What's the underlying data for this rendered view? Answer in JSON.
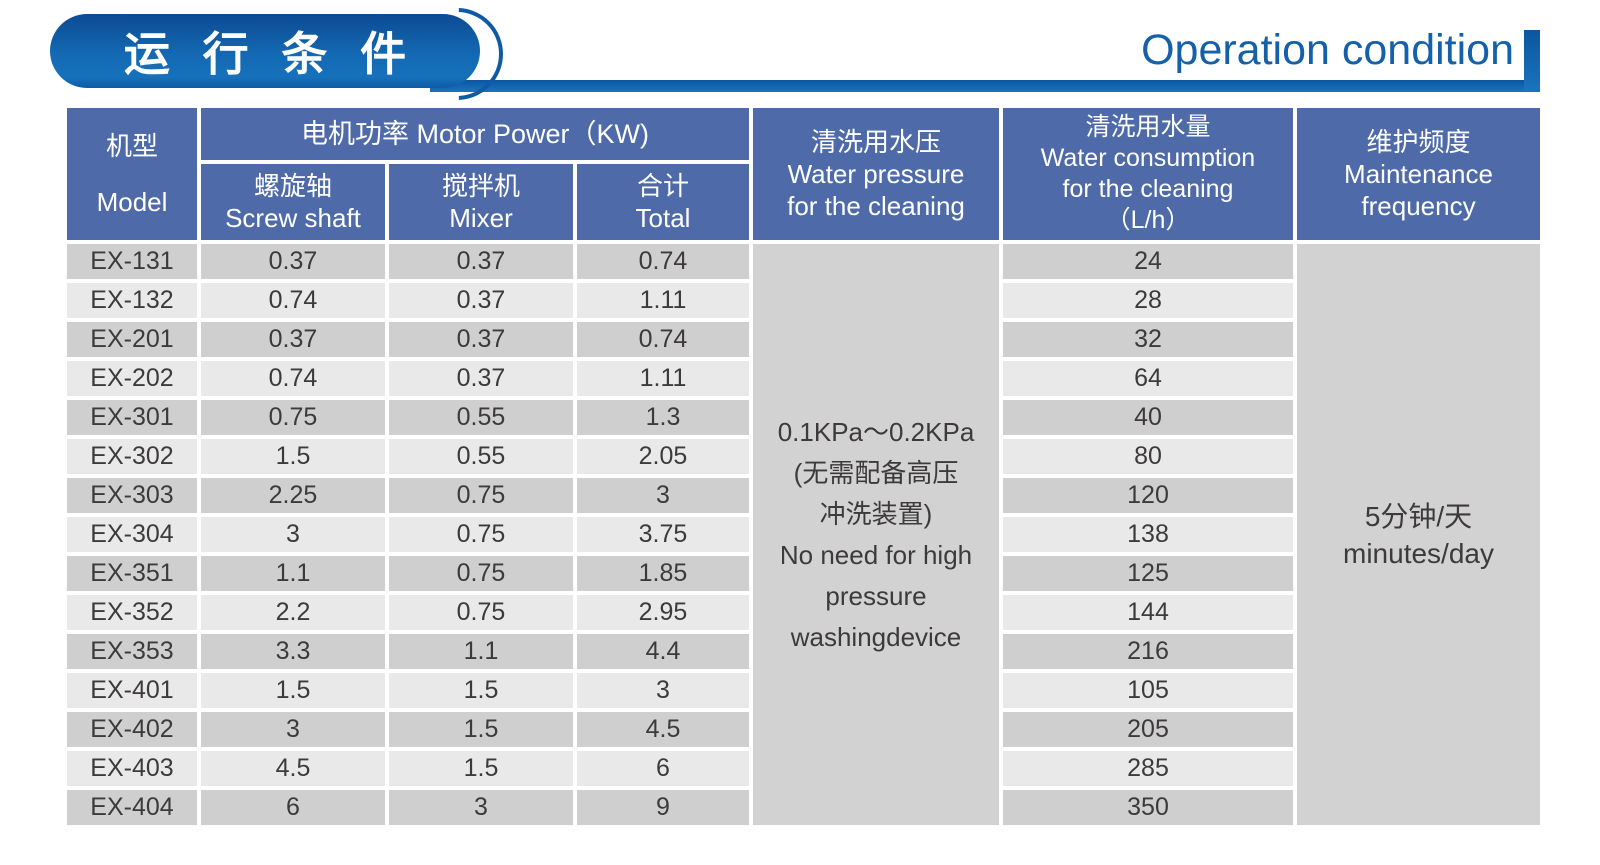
{
  "header": {
    "title_zh": "运 行 条 件",
    "title_en": "Operation condition"
  },
  "colors": {
    "accent_blue": "#0f5aa6",
    "header_blue": "#4e6aa9",
    "row_dark": "#d0cfcf",
    "row_light": "#eae9e9",
    "merged_gray": "#d3d2d2",
    "title_text_blue": "#1560ab"
  },
  "table": {
    "columns": {
      "model": {
        "lines": [
          "机型",
          "Model"
        ]
      },
      "motor_power": {
        "label": "电机功率  Motor Power（KW)"
      },
      "screw": {
        "lines": [
          "螺旋轴",
          "Screw shaft"
        ]
      },
      "mixer": {
        "lines": [
          "搅拌机",
          "Mixer"
        ]
      },
      "total": {
        "lines": [
          "合计",
          "Total"
        ]
      },
      "pressure": {
        "lines": [
          "清洗用水压",
          "Water pressure",
          "for the cleaning"
        ]
      },
      "consumption": {
        "lines": [
          "清洗用水量",
          "Water consumption",
          "for the cleaning",
          "（L/h）"
        ]
      },
      "maintenance": {
        "lines": [
          "维护频度",
          "Maintenance",
          "frequency"
        ]
      }
    },
    "pressure_cell": {
      "lines": [
        "0.1KPa～0.2KPa",
        "(无需配备高压",
        "冲洗装置)",
        "No need for high",
        "pressure",
        "washingdevice"
      ]
    },
    "maintenance_cell": {
      "lines": [
        "5分钟/天",
        "minutes/day"
      ]
    },
    "rows": [
      {
        "model": "EX-131",
        "screw": "0.37",
        "mixer": "0.37",
        "total": "0.74",
        "water": "24"
      },
      {
        "model": "EX-132",
        "screw": "0.74",
        "mixer": "0.37",
        "total": "1.11",
        "water": "28"
      },
      {
        "model": "EX-201",
        "screw": "0.37",
        "mixer": "0.37",
        "total": "0.74",
        "water": "32"
      },
      {
        "model": "EX-202",
        "screw": "0.74",
        "mixer": "0.37",
        "total": "1.11",
        "water": "64"
      },
      {
        "model": "EX-301",
        "screw": "0.75",
        "mixer": "0.55",
        "total": "1.3",
        "water": "40"
      },
      {
        "model": "EX-302",
        "screw": "1.5",
        "mixer": "0.55",
        "total": "2.05",
        "water": "80"
      },
      {
        "model": "EX-303",
        "screw": "2.25",
        "mixer": "0.75",
        "total": "3",
        "water": "120"
      },
      {
        "model": "EX-304",
        "screw": "3",
        "mixer": "0.75",
        "total": "3.75",
        "water": "138"
      },
      {
        "model": "EX-351",
        "screw": "1.1",
        "mixer": "0.75",
        "total": "1.85",
        "water": "125"
      },
      {
        "model": "EX-352",
        "screw": "2.2",
        "mixer": "0.75",
        "total": "2.95",
        "water": "144"
      },
      {
        "model": "EX-353",
        "screw": "3.3",
        "mixer": "1.1",
        "total": "4.4",
        "water": "216"
      },
      {
        "model": "EX-401",
        "screw": "1.5",
        "mixer": "1.5",
        "total": "3",
        "water": "105"
      },
      {
        "model": "EX-402",
        "screw": "3",
        "mixer": "1.5",
        "total": "4.5",
        "water": "205"
      },
      {
        "model": "EX-403",
        "screw": "4.5",
        "mixer": "1.5",
        "total": "6",
        "water": "285"
      },
      {
        "model": "EX-404",
        "screw": "6",
        "mixer": "3",
        "total": "9",
        "water": "350"
      }
    ]
  }
}
